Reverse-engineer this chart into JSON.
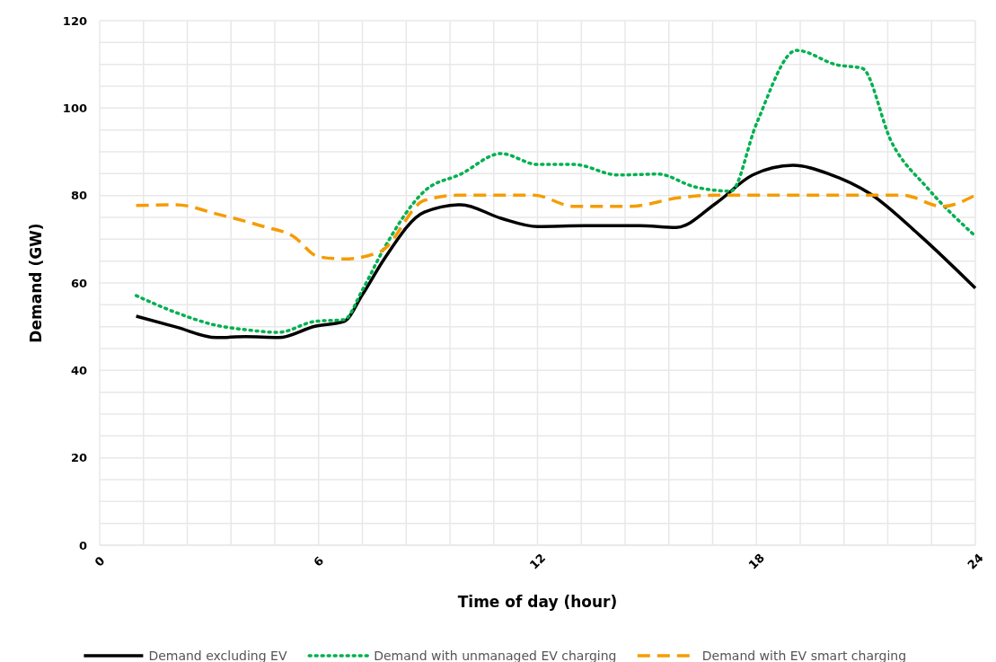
{
  "chart_data": {
    "type": "line",
    "xlabel": "Time of day (hour)",
    "ylabel": "Demand (GW)",
    "xlim": [
      0,
      24
    ],
    "ylim": [
      0,
      120
    ],
    "xticks": [
      0,
      {
        "value": 1.2,
        "label": null
      },
      {
        "value": 2.4,
        "label": null
      },
      {
        "value": 3.6,
        "label": null
      },
      {
        "value": 4.8,
        "label": null
      },
      6,
      {
        "value": 7.2,
        "label": null
      },
      {
        "value": 8.4,
        "label": null
      },
      {
        "value": 9.6,
        "label": null
      },
      {
        "value": 10.8,
        "label": null
      },
      12,
      {
        "value": 13.2,
        "label": null
      },
      {
        "value": 14.4,
        "label": null
      },
      {
        "value": 15.6,
        "label": null
      },
      {
        "value": 16.8,
        "label": null
      },
      18,
      {
        "value": 19.2,
        "label": null
      },
      {
        "value": 20.4,
        "label": null
      },
      {
        "value": 21.6,
        "label": null
      },
      {
        "value": 22.8,
        "label": null
      },
      24
    ],
    "yticks": [
      0,
      {
        "value": 5,
        "label": null
      },
      {
        "value": 10,
        "label": null
      },
      {
        "value": 15,
        "label": null
      },
      20,
      {
        "value": 25,
        "label": null
      },
      {
        "value": 30,
        "label": null
      },
      {
        "value": 35,
        "label": null
      },
      40,
      {
        "value": 45,
        "label": null
      },
      {
        "value": 50,
        "label": null
      },
      {
        "value": 55,
        "label": null
      },
      60,
      {
        "value": 65,
        "label": null
      },
      {
        "value": 70,
        "label": null
      },
      {
        "value": 75,
        "label": null
      },
      80,
      {
        "value": 85,
        "label": null
      },
      {
        "value": 90,
        "label": null
      },
      {
        "value": 95,
        "label": null
      },
      100,
      {
        "value": 105,
        "label": null
      },
      {
        "value": 110,
        "label": null
      },
      {
        "value": 115,
        "label": null
      },
      120
    ],
    "grid": true,
    "legend": "bottom",
    "marker": "none",
    "series": [
      {
        "name": "Demand excluding EV",
        "color": "#000000",
        "line_style": "solid",
        "x": [
          1,
          2.1,
          3.2,
          4,
          4.9,
          5.9,
          6.7,
          7.2,
          7.8,
          8.9,
          9.9,
          11,
          12,
          13.3,
          14.8,
          15.8,
          16.9,
          17.9,
          19,
          20,
          21.1,
          22.5,
          24
        ],
        "values": [
          52.4,
          49.9,
          47.5,
          47.7,
          47.5,
          50.1,
          51.2,
          57.3,
          65.5,
          76.2,
          77.9,
          74.8,
          72.9,
          73.1,
          73.1,
          72.7,
          78.3,
          84.7,
          86.9,
          84.9,
          80.5,
          70.7,
          58.8
        ]
      },
      {
        "name": "Demand with unmanaged EV charging",
        "color": "#00b050",
        "line_style": "dotted",
        "x": [
          1,
          2.1,
          3.2,
          4,
          4.9,
          5.9,
          6.7,
          7.2,
          7.8,
          8.9,
          9.9,
          11,
          12,
          13,
          14.2,
          15.3,
          16.3,
          17.3,
          18,
          19.1,
          20.2,
          20.9,
          21.7,
          22.7,
          24
        ],
        "values": [
          57.1,
          53.2,
          50.3,
          49.3,
          48.7,
          51.2,
          51.6,
          58.4,
          68,
          81,
          84.9,
          89.6,
          87.1,
          87.1,
          84.7,
          84.9,
          82,
          81,
          96.4,
          113.2,
          109.9,
          109.1,
          92.3,
          81.6,
          70.7
        ]
      },
      {
        "name": "Demand with EV smart charging",
        "color": "#f59c00",
        "line_style": "dashed",
        "x": [
          1,
          2.1,
          3.2,
          4.5,
          5.3,
          6,
          6.7,
          7.7,
          8.9,
          9.9,
          11,
          11.9,
          13,
          14.5,
          15.9,
          16.9,
          18.1,
          22,
          23.1,
          24
        ],
        "values": [
          77.7,
          77.9,
          75.8,
          72.9,
          70.7,
          66,
          65.5,
          67.2,
          78.9,
          80.1,
          80.1,
          80.1,
          77.5,
          77.5,
          79.5,
          80.1,
          80.1,
          80.1,
          77.5,
          80.1
        ]
      }
    ]
  }
}
